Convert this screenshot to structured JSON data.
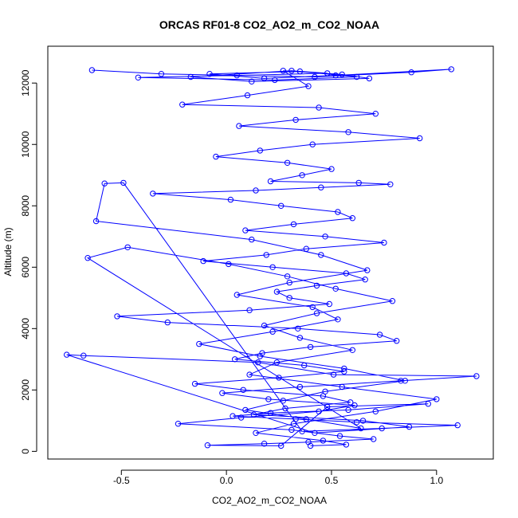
{
  "chart_data": {
    "type": "line",
    "title": "ORCAS RF01-8 CO2_AO2_m_CO2_NOAA",
    "xlabel": "CO2_AO2_m_CO2_NOAA",
    "ylabel": "Altitude (m)",
    "xlim": [
      -0.85,
      1.27
    ],
    "ylim": [
      -250,
      13200
    ],
    "xticks": [
      -0.5,
      0.0,
      0.5,
      1.0
    ],
    "xtick_labels": [
      "-0.5",
      "0.0",
      "0.5",
      "1.0"
    ],
    "yticks": [
      0,
      2000,
      4000,
      6000,
      8000,
      10000,
      12000
    ],
    "ytick_labels": [
      "0",
      "2000",
      "4000",
      "6000",
      "8000",
      "10000",
      "12000"
    ],
    "grid": false,
    "legend": "none",
    "series_color": "#0000ff",
    "series": [
      {
        "marker": "open-circle",
        "line": true,
        "x": [
          -0.64,
          -0.31,
          0.42,
          0.88,
          1.07,
          0.52,
          0.18,
          -0.08,
          0.35,
          0.62,
          0.23,
          -0.42,
          0.05,
          0.48,
          0.31,
          -0.17,
          0.12,
          0.68,
          0.55,
          0.27,
          0.39,
          0.1,
          -0.21,
          0.44,
          0.71,
          0.33,
          0.06,
          0.58,
          0.92,
          0.41,
          0.16,
          -0.05,
          0.29,
          0.5,
          0.36,
          0.21,
          0.63,
          0.78,
          0.45,
          0.14,
          -0.35,
          0.02,
          0.26,
          0.53,
          0.6,
          0.32,
          0.09,
          0.47,
          0.75,
          0.38,
          0.19,
          -0.11,
          0.22,
          0.57,
          0.66,
          0.43,
          0.24,
          0.3,
          0.49,
          0.11,
          -0.52,
          -0.28,
          0.34,
          0.73,
          0.81,
          0.4,
          0.17,
          0.04,
          0.37,
          0.56,
          0.25,
          -0.15,
          0.08,
          0.46,
          0.59,
          0.28,
          0.13,
          0.65,
          0.87,
          0.42,
          -0.76,
          -0.68,
          0.15,
          0.51,
          1.19,
          0.83,
          0.35,
          -0.02,
          0.2,
          0.61,
          0.44,
          0.07,
          -0.23,
          0.31,
          0.54,
          0.7,
          0.39,
          0.18,
          -0.09,
          0.26,
          0.48,
          0.96,
          0.58,
          0.21,
          0.03,
          0.33,
          0.62,
          1.1,
          0.74,
          0.36,
          -0.49,
          -0.58,
          -0.62,
          0.12,
          0.45,
          0.67,
          0.3,
          0.05,
          0.41,
          0.53,
          0.22,
          -0.13,
          0.16,
          0.56,
          0.85,
          0.47,
          0.27,
          0.09,
          0.38,
          0.64,
          -0.66,
          -0.47,
          0.01,
          0.29,
          0.52,
          0.79,
          0.43,
          0.18,
          0.35,
          0.6,
          0.24,
          0.11,
          0.55,
          1.0,
          0.71,
          0.32,
          0.14,
          0.46,
          0.57,
          0.4
        ],
        "y": [
          12420,
          12300,
          12200,
          12350,
          12450,
          12250,
          12150,
          12300,
          12380,
          12200,
          12100,
          12180,
          12250,
          12320,
          12400,
          12200,
          12050,
          12150,
          12280,
          12400,
          11900,
          11600,
          11300,
          11200,
          11000,
          10800,
          10600,
          10400,
          10200,
          10000,
          9800,
          9600,
          9400,
          9200,
          9000,
          8800,
          8750,
          8700,
          8600,
          8500,
          8400,
          8200,
          8000,
          7800,
          7600,
          7400,
          7200,
          7000,
          6800,
          6600,
          6400,
          6200,
          6000,
          5800,
          5600,
          5400,
          5200,
          5000,
          4800,
          4600,
          4400,
          4200,
          4000,
          3800,
          3600,
          3400,
          3200,
          3000,
          2800,
          2600,
          2400,
          2200,
          2000,
          1800,
          1600,
          1400,
          1200,
          1000,
          800,
          600,
          3150,
          3120,
          2900,
          2500,
          2450,
          2300,
          2100,
          1900,
          1700,
          1500,
          1300,
          1100,
          900,
          700,
          500,
          400,
          300,
          250,
          200,
          180,
          1450,
          1550,
          1350,
          1250,
          1150,
          1050,
          950,
          850,
          750,
          650,
          8750,
          8730,
          7500,
          6900,
          6400,
          5900,
          5500,
          5100,
          4700,
          4300,
          3900,
          3500,
          3100,
          2700,
          2300,
          1950,
          1650,
          1350,
          1050,
          750,
          6300,
          6650,
          6100,
          5700,
          5300,
          4900,
          4500,
          4100,
          3700,
          3300,
          2900,
          2500,
          2100,
          1700,
          1300,
          900,
          600,
          350,
          220,
          180
        ]
      }
    ]
  }
}
